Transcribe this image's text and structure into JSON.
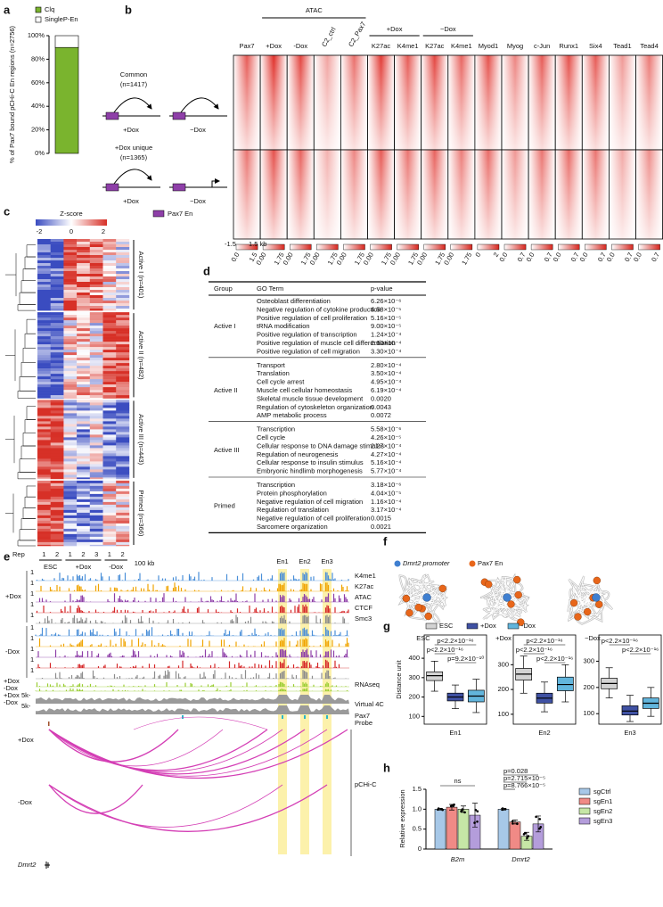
{
  "panel_labels": [
    "a",
    "b",
    "c",
    "d",
    "e",
    "f",
    "g",
    "h"
  ],
  "panel_b": {
    "atac": "ATAC",
    "dox_plus": "+Dox",
    "dox_minus": "−Dox",
    "columns": [
      "Pax7",
      "+Dox",
      "-Dox",
      "C2_ctrl",
      "C2_Pax7",
      "K27ac",
      "K4me1",
      "K27ac",
      "K4me1",
      "Myod1",
      "Myog",
      "c-Jun",
      "Runx1",
      "Six4",
      "Tead1",
      "Tead4"
    ],
    "scales": [
      [
        "0.0",
        "1.5"
      ],
      [
        "0.00",
        "1.75"
      ],
      [
        "0.00",
        "1.75"
      ],
      [
        "0.00",
        "1.75"
      ],
      [
        "0.00",
        "1.75"
      ],
      [
        "0.00",
        "1.75"
      ],
      [
        "0.00",
        "1.75"
      ],
      [
        "0.00",
        "1.75"
      ],
      [
        "0.00",
        "1.75"
      ],
      [
        "0",
        "2"
      ],
      [
        "0.0",
        "0.7"
      ],
      [
        "0.0",
        "0.7"
      ],
      [
        "0.0",
        "0.7"
      ],
      [
        "0.0",
        "0.7"
      ],
      [
        "0.0",
        "0.7"
      ],
      [
        "0.0",
        "0.7"
      ]
    ],
    "axis": [
      "-1.5",
      "1.5 kb"
    ],
    "common": "Common",
    "common_n": "(n=1417)",
    "unique": "+Dox unique",
    "unique_n": "(n=1365)",
    "conditions": [
      "+Dox",
      "−Dox"
    ],
    "legend": "Pax7 En",
    "legend_color": "#8e3fa8"
  },
  "panel_c": {
    "title": "Z-score",
    "ticks": [
      "-2",
      "0",
      "2"
    ],
    "clusters": [
      "Active I (n=401)",
      "Active II (n=482)",
      "Active III (n=443)",
      "Primed (n=366)"
    ],
    "rep": "Rep",
    "reps": [
      "1",
      "2",
      "1",
      "2",
      "3",
      "1",
      "2"
    ],
    "groups": [
      "ESC",
      "+Dox",
      "-Dox"
    ]
  },
  "table": {
    "header": [
      "Group",
      "GO Term",
      "p-value"
    ],
    "groups": [
      {
        "name": "Active I",
        "rows": [
          [
            "Osteoblast differentiation",
            "6.26×10⁻⁶"
          ],
          [
            "Negative regulation of cytokine production",
            "4.58×10⁻⁵"
          ],
          [
            "Positive regulation of cell proliferation",
            "5.16×10⁻⁵"
          ],
          [
            "tRNA modification",
            "9.00×10⁻⁵"
          ],
          [
            "Positive regulation of transcription",
            "1.24×10⁻⁴"
          ],
          [
            "Positive regulation of muscle cell differentiation",
            "2.60×10⁻⁴"
          ],
          [
            "Positive regulation of cell migration",
            "3.30×10⁻⁴"
          ]
        ]
      },
      {
        "name": "Active II",
        "rows": [
          [
            "Transport",
            "2.80×10⁻⁴"
          ],
          [
            "Translation",
            "3.50×10⁻⁴"
          ],
          [
            "Cell cycle arrest",
            "4.95×10⁻⁴"
          ],
          [
            "Muscle cell cellular homeostasis",
            "6.19×10⁻⁴"
          ],
          [
            "Skeletal muscle tissue development",
            "0.0020"
          ],
          [
            "Regulation of cytoskeleton organization",
            "0.0043"
          ],
          [
            "AMP metabolic process",
            "0.0072"
          ]
        ]
      },
      {
        "name": "Active III",
        "rows": [
          [
            "Transcription",
            "5.58×10⁻⁶"
          ],
          [
            "Cell cycle",
            "4.26×10⁻⁵"
          ],
          [
            "Cellular response to DNA damage stimulus",
            "2.27×10⁻⁴"
          ],
          [
            "Regulation of neurogenesis",
            "4.27×10⁻⁴"
          ],
          [
            "Cellular response to insulin stimulus",
            "5.16×10⁻⁴"
          ],
          [
            "Embryonic hindlimb morphogenesis",
            "5.77×10⁻⁴"
          ]
        ]
      },
      {
        "name": "Primed",
        "rows": [
          [
            "Transcription",
            "3.18×10⁻⁶"
          ],
          [
            "Protein phosphorylation",
            "4.04×10⁻⁵"
          ],
          [
            "Negative regulation of cell migration",
            "1.16×10⁻⁴"
          ],
          [
            "Regulation of translation",
            "3.17×10⁻⁴"
          ],
          [
            "Negative regulation of cell proliferation",
            "0.0015"
          ],
          [
            "Sarcomere organization",
            "0.0021"
          ]
        ]
      }
    ]
  },
  "panel_e": {
    "scale": "100 kb",
    "enhancers": [
      "En1",
      "En2",
      "En3"
    ],
    "conditions": [
      "+Dox",
      "-Dox"
    ],
    "track_max": "1",
    "tracks": [
      "K4me1",
      "K27ac",
      "ATAC",
      "CTCF",
      "Smc3"
    ],
    "track_colors": [
      "#4a8fd8",
      "#f0a400",
      "#8e3fa8",
      "#d62728",
      "#8c8c8c"
    ],
    "rnaseq": "RNAseq",
    "virtual": "Virtual 4C",
    "pax7": "Pax7",
    "probe": "Probe",
    "v4c_conditions": [
      "+Dox",
      "-Dox",
      "+Dox",
      "-Dox"
    ],
    "v4c_scale": "5k-",
    "pchic": "pCHi-C",
    "gene": "Dmrt2"
  },
  "panel_f": {
    "legend": [
      "Dmrt2 promoter",
      "Pax7 En"
    ],
    "legend_colors": [
      "#3f7fd0",
      "#e8661a"
    ],
    "conditions": [
      "ESC",
      "+Dox",
      "−Dox"
    ]
  },
  "chart_data": [
    {
      "type": "bar",
      "stacked": true,
      "y_label": "% of Pax7 bound pCHi-C En regions (n=2756)",
      "ylim": [
        0,
        100
      ],
      "yticks": [
        {
          "value": 0,
          "label": "0%"
        },
        {
          "value": 20,
          "label": "20%"
        },
        {
          "value": 40,
          "label": "40%"
        },
        {
          "value": 60,
          "label": "60%"
        },
        {
          "value": 80,
          "label": "80%"
        },
        {
          "value": 100,
          "label": "100%"
        }
      ],
      "series": [
        {
          "name": "Clq",
          "color": "#7ab42e",
          "values": [
            90
          ]
        },
        {
          "name": "SingleP-En",
          "color": "#ffffff",
          "values": [
            10
          ]
        }
      ]
    },
    {
      "type": "box",
      "y_label": "Distance unit",
      "series": [
        {
          "name": "ESC",
          "color": "#d3d3d3"
        },
        {
          "name": "+Dox",
          "color": "#3f51a3"
        },
        {
          "name": "-Dox",
          "color": "#62b5dc"
        }
      ],
      "panels": [
        {
          "x_label": "En1",
          "ylim": [
            60,
            520
          ],
          "yticks": [
            100,
            200,
            300,
            400
          ],
          "boxes": [
            {
              "min": 230,
              "q1": 285,
              "median": 310,
              "q3": 330,
              "max": 385
            },
            {
              "min": 140,
              "q1": 180,
              "median": 200,
              "q3": 220,
              "max": 262
            },
            {
              "min": 120,
              "q1": 175,
              "median": 205,
              "q3": 235,
              "max": 292
            }
          ],
          "annotations": [
            "p<2.2×10⁻¹⁶",
            "p<2.2×10⁻¹⁶",
            "p=9.2×10⁻¹⁰"
          ]
        },
        {
          "x_label": "En2",
          "ylim": [
            60,
            420
          ],
          "yticks": [
            100,
            200,
            300
          ],
          "boxes": [
            {
              "min": 185,
              "q1": 238,
              "median": 262,
              "q3": 285,
              "max": 335
            },
            {
              "min": 110,
              "q1": 145,
              "median": 165,
              "q3": 185,
              "max": 230
            },
            {
              "min": 150,
              "q1": 195,
              "median": 220,
              "q3": 250,
              "max": 300
            }
          ],
          "annotations": [
            "p<2.2×10⁻¹⁶",
            "p<2.2×10⁻¹⁶",
            "p<2.2×10⁻¹⁶"
          ]
        },
        {
          "x_label": "En3",
          "ylim": [
            60,
            400
          ],
          "yticks": [
            100,
            200,
            300
          ],
          "boxes": [
            {
              "min": 160,
              "q1": 195,
              "median": 215,
              "q3": 235,
              "max": 275
            },
            {
              "min": 70,
              "q1": 95,
              "median": 110,
              "q3": 130,
              "max": 170
            },
            {
              "min": 90,
              "q1": 120,
              "median": 140,
              "q3": 160,
              "max": 200
            }
          ],
          "annotations": [
            "p<2.2×10⁻¹⁶",
            "p<2.2×10⁻¹⁶"
          ]
        }
      ]
    },
    {
      "type": "bar",
      "y_label": "Relative expression",
      "categories": [
        "B2m",
        "Dmrt2"
      ],
      "ylim": [
        0,
        1.5
      ],
      "yticks": [
        0,
        0.5,
        {
          "value": 1,
          "label": "1.0"
        },
        1.5
      ],
      "series": [
        {
          "name": "sgCtrl",
          "color": "#a7c8e8",
          "values": [
            1.0,
            1.0
          ],
          "errors": [
            0.02,
            0.02
          ]
        },
        {
          "name": "sgEn1",
          "color": "#f08a86",
          "values": [
            1.05,
            0.68
          ],
          "errors": [
            0.07,
            0.05
          ]
        },
        {
          "name": "sgEn2",
          "color": "#c6e6a6",
          "values": [
            1.0,
            0.32
          ],
          "errors": [
            0.08,
            0.1
          ]
        },
        {
          "name": "sgEn3",
          "color": "#b49ddb",
          "values": [
            0.85,
            0.63
          ],
          "errors": [
            0.3,
            0.2
          ]
        }
      ],
      "annotations": [
        "ns",
        "p=0.028",
        "p=2.715×10⁻⁵",
        "p=8.766×10⁻⁵"
      ]
    }
  ]
}
